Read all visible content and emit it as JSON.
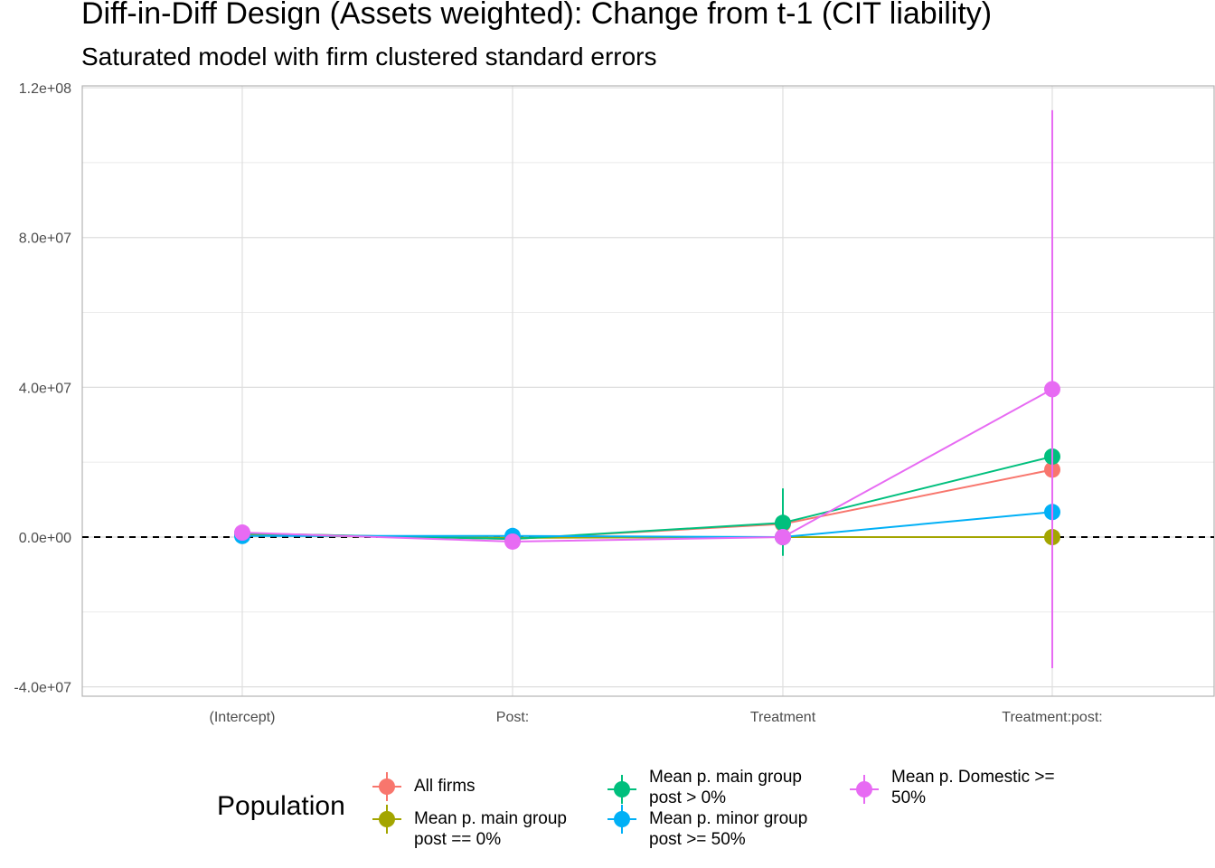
{
  "chart_data": {
    "type": "scatter",
    "title": "Diff-in-Diff Design (Assets weighted): Change from t-1 (CIT liability)",
    "subtitle": "Saturated model with firm clustered standard errors",
    "xlabel": "",
    "ylabel": "",
    "categories": [
      "(Intercept)",
      "Post:",
      "Treatment",
      "Treatment:post:"
    ],
    "yticks": [
      -40000000,
      0,
      40000000,
      80000000,
      120000000
    ],
    "ytick_labels": [
      "-4.0e+07",
      "0.0e+00",
      "4.0e+07",
      "8.0e+07",
      "1.2e+08"
    ],
    "ylim": [
      -42500000,
      120500000
    ],
    "reference_line": 0,
    "grid": true,
    "legend": {
      "title": "Population",
      "placement": "bottom"
    },
    "series": [
      {
        "name": "All firms",
        "color": "#F8766D",
        "values": [
          1000000,
          -500000,
          3500000,
          18000000
        ],
        "lower": [
          300000,
          -1500000,
          2000000,
          17000000
        ],
        "upper": [
          1700000,
          500000,
          5000000,
          19000000
        ]
      },
      {
        "name": "Mean p. main group\npost == 0%",
        "color": "#A3A500",
        "values": [
          500000,
          -200000,
          0,
          0
        ],
        "lower": [
          0,
          -800000,
          -300000,
          -300000
        ],
        "upper": [
          1000000,
          400000,
          300000,
          300000
        ]
      },
      {
        "name": "Mean p. main group\npost > 0%",
        "color": "#00BF7D",
        "values": [
          1000000,
          -500000,
          3800000,
          21500000
        ],
        "lower": [
          300000,
          -1500000,
          -5000000,
          20000000
        ],
        "upper": [
          1700000,
          500000,
          13000000,
          23000000
        ]
      },
      {
        "name": "Mean p. minor group\npost >= 50%",
        "color": "#00B0F6",
        "values": [
          300000,
          300000,
          0,
          6700000
        ],
        "lower": [
          -300000,
          -300000,
          -500000,
          5500000
        ],
        "upper": [
          900000,
          900000,
          500000,
          7900000
        ]
      },
      {
        "name": "Mean p. Domestic >=\n50%",
        "color": "#E76BF3",
        "values": [
          1200000,
          -1200000,
          0,
          39500000
        ],
        "lower": [
          500000,
          -2500000,
          -1000000,
          -35000000
        ],
        "upper": [
          1900000,
          100000,
          1000000,
          114000000
        ]
      }
    ]
  }
}
